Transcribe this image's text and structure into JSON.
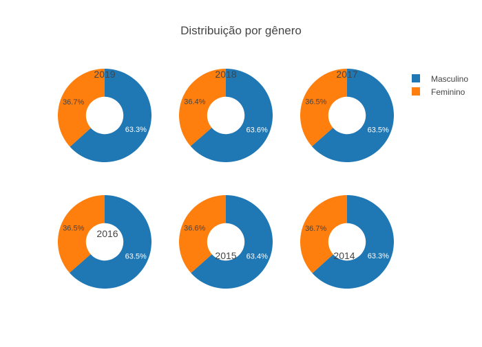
{
  "chart_data": {
    "type": "pie",
    "title": "Distribuição por gênero",
    "hole": 0.4,
    "legend_position": "top-right",
    "series_names": [
      "Masculino",
      "Feminino"
    ],
    "colors": {
      "Masculino": "#1f77b4",
      "Feminino": "#ff7f0e"
    },
    "charts": [
      {
        "year": "2019",
        "values": [
          63.3,
          36.7
        ],
        "labels": [
          "63.3%",
          "36.7%"
        ]
      },
      {
        "year": "2018",
        "values": [
          63.6,
          36.4
        ],
        "labels": [
          "63.6%",
          "36.4%"
        ]
      },
      {
        "year": "2017",
        "values": [
          63.5,
          36.5
        ],
        "labels": [
          "63.5%",
          "36.5%"
        ]
      },
      {
        "year": "2016",
        "values": [
          63.5,
          36.5
        ],
        "labels": [
          "63.5%",
          "36.5%"
        ]
      },
      {
        "year": "2015",
        "values": [
          63.4,
          36.6
        ],
        "labels": [
          "63.4%",
          "36.6%"
        ]
      },
      {
        "year": "2014",
        "values": [
          63.3,
          36.7
        ],
        "labels": [
          "63.3%",
          "36.7%"
        ]
      }
    ]
  }
}
